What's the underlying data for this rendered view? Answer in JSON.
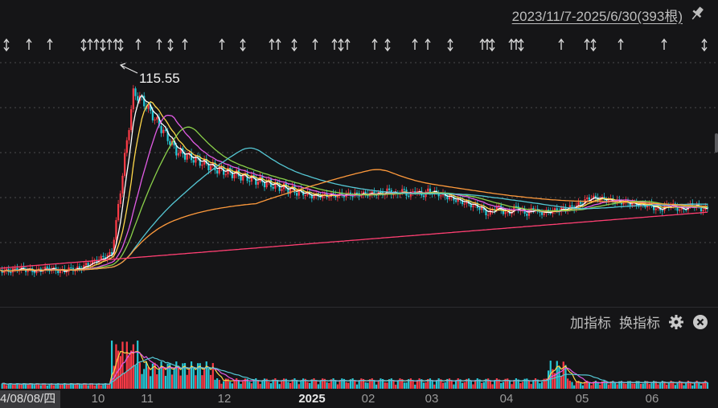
{
  "header": {
    "range_label": "2023/11/7-2025/6/30(393根)",
    "pin_icon": "pin-icon"
  },
  "toolbar": {
    "add_indicator": "加指标",
    "switch_indicator": "换指标",
    "settings_icon": "gear-icon",
    "close_icon": "close-icon"
  },
  "annotation": {
    "max_price_label": "115.55"
  },
  "cursor": {
    "date_label": "4/08/08/四"
  },
  "xaxis": {
    "labels": [
      {
        "text": "10",
        "bold": false
      },
      {
        "text": "11",
        "bold": false
      },
      {
        "text": "12",
        "bold": false
      },
      {
        "text": "2025",
        "bold": true
      },
      {
        "text": "02",
        "bold": false
      },
      {
        "text": "03",
        "bold": false
      },
      {
        "text": "04",
        "bold": false
      },
      {
        "text": "05",
        "bold": false
      },
      {
        "text": "06",
        "bold": false
      }
    ]
  },
  "colors": {
    "background": "#151517",
    "up": "#ff3b47",
    "down": "#26c8d6",
    "ma5": "#ffffff",
    "ma10": "#ffd84a",
    "ma20": "#e25ce6",
    "ma30": "#8bd14a",
    "ma60": "#55c7d4",
    "ma120": "#ff9a3c",
    "ma250": "#ff3f72"
  }
}
